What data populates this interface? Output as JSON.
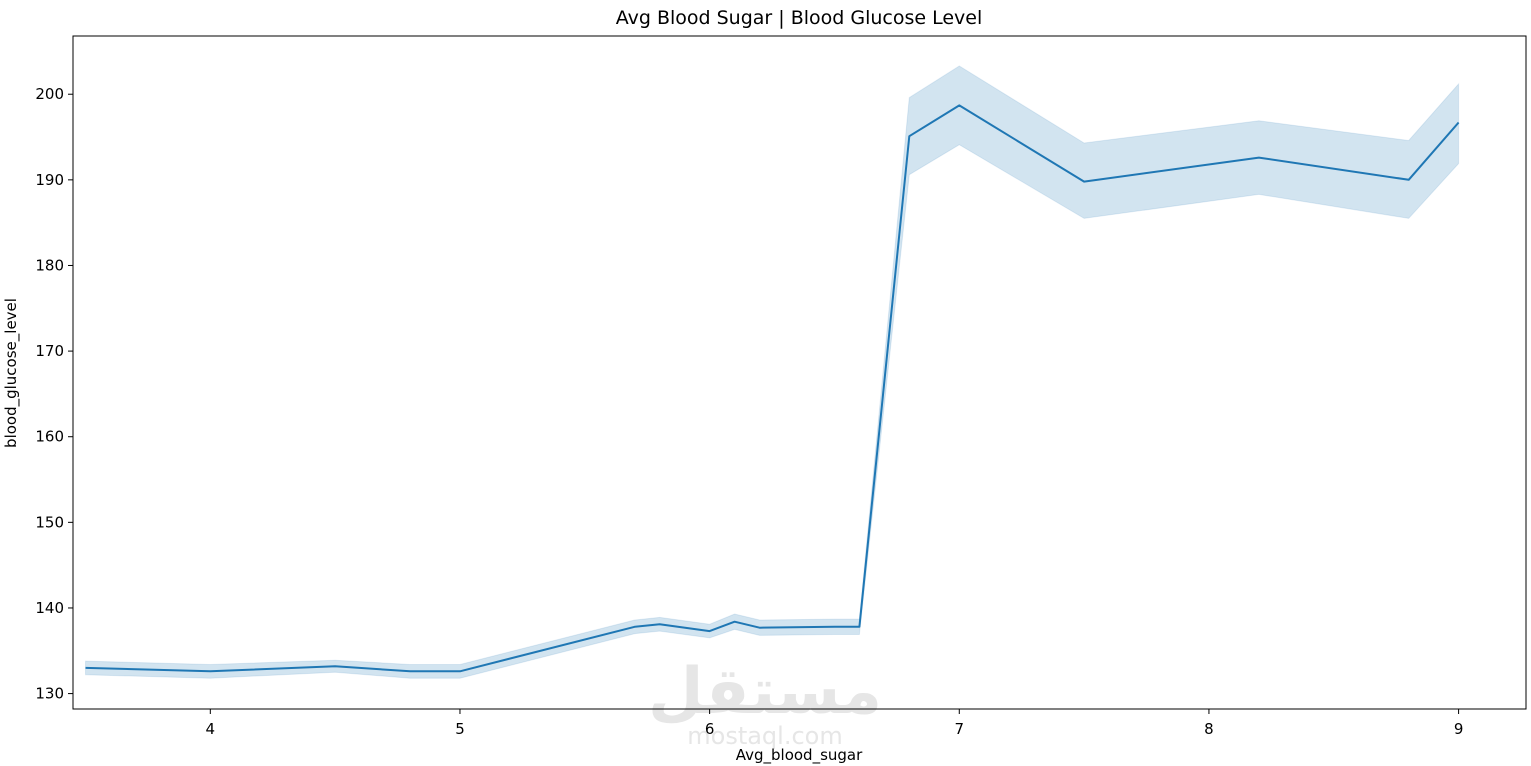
{
  "chart_data": {
    "type": "line",
    "title": "Avg Blood Sugar  |  Blood Glucose Level",
    "xlabel": "Avg_blood_sugar",
    "ylabel": "blood_glucose_level",
    "xlim": [
      3.45,
      9.27
    ],
    "ylim": [
      128.2,
      206.8
    ],
    "xticks": [
      4,
      5,
      6,
      7,
      8,
      9
    ],
    "yticks": [
      130,
      140,
      150,
      160,
      170,
      180,
      190,
      200
    ],
    "grid": false,
    "line_color": "#1f77b4",
    "band_color": "#1f77b4",
    "series": [
      {
        "x": [
          3.5,
          4.0,
          4.5,
          4.8,
          5.0,
          5.7,
          5.8,
          6.0,
          6.1,
          6.2,
          6.5,
          6.6,
          6.8,
          7.0,
          7.5,
          8.2,
          8.8,
          9.0
        ],
        "y": [
          133.0,
          132.6,
          133.2,
          132.6,
          132.6,
          137.8,
          138.1,
          137.3,
          138.4,
          137.7,
          137.8,
          137.8,
          195.1,
          198.7,
          189.8,
          192.6,
          190.0,
          196.7
        ],
        "ci_lower": [
          132.2,
          131.8,
          132.5,
          131.8,
          131.8,
          137.0,
          137.3,
          136.5,
          137.5,
          136.8,
          136.9,
          136.9,
          190.6,
          194.1,
          185.5,
          188.3,
          185.5,
          191.9
        ],
        "ci_upper": [
          133.8,
          133.4,
          133.9,
          133.4,
          133.4,
          138.6,
          138.9,
          138.1,
          139.3,
          138.6,
          138.7,
          138.7,
          199.6,
          203.3,
          194.3,
          196.9,
          194.6,
          201.2
        ]
      }
    ]
  },
  "watermark": {
    "arabic": "مستقل",
    "latin": "mostaql.com"
  }
}
